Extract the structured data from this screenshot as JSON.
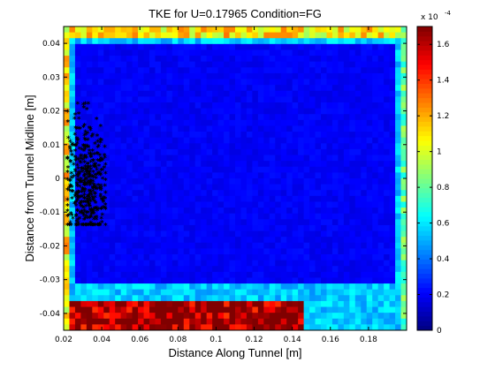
{
  "chart_data": {
    "type": "heatmap",
    "title": "TKE for U=0.17965 Condition=FG",
    "xlabel": "Distance Along Tunnel [m]",
    "ylabel": "Distance from Tunnel Midline [m]",
    "xlim": [
      0.02,
      0.2
    ],
    "ylim": [
      -0.045,
      0.045
    ],
    "x_ticks": [
      "0.02",
      "0.04",
      "0.06",
      "0.08",
      "0.1",
      "0.12",
      "0.14",
      "0.16",
      "0.18"
    ],
    "y_ticks": [
      "0.04",
      "0.03",
      "0.02",
      "0.01",
      "0",
      "-0.01",
      "-0.02",
      "-0.03",
      "-0.04"
    ],
    "colorbar": {
      "colormap": "jet",
      "range": [
        0,
        0.00017
      ],
      "ticks": [
        "1.6",
        "1.4",
        "1.2",
        "1",
        "0.8",
        "0.6",
        "0.4",
        "0.2",
        "0"
      ],
      "multiplier_text": "x 10",
      "multiplier_exponent": "-4"
    },
    "field_description": {
      "interior_level": 2e-05,
      "ring_level": 5.5e-05,
      "bottom_band_level": 0.00017,
      "top_edge_level": 0.00011,
      "right_edge_level": 8e-05
    },
    "scatter": {
      "marker": "*",
      "color": "#000000",
      "x_range": [
        0.022,
        0.042
      ],
      "y_range": [
        -0.014,
        0.022
      ],
      "center": [
        0.032,
        -0.002
      ]
    }
  }
}
